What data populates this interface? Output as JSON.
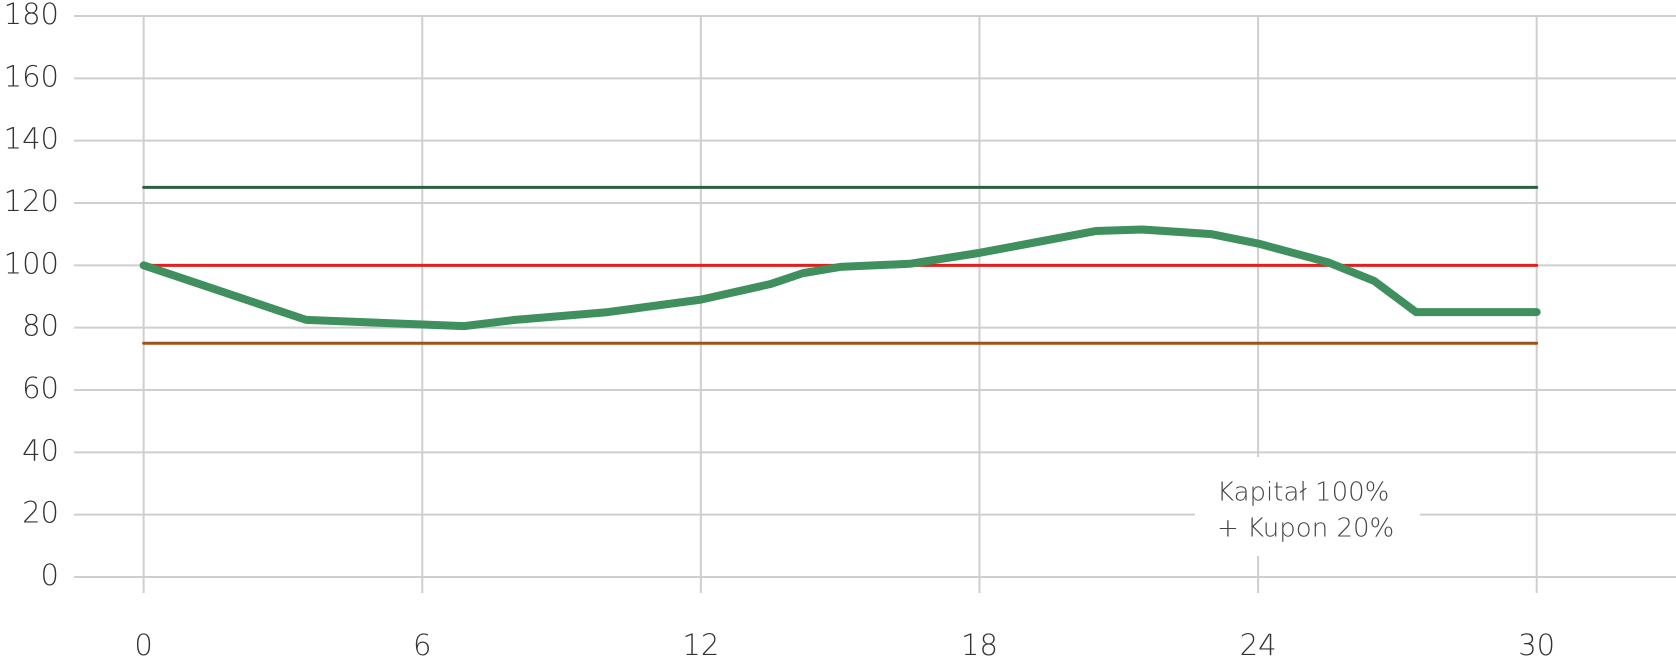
{
  "chart_data": {
    "type": "line",
    "annotation": [
      "Kapitał 100%",
      "+ Kupon 20%"
    ],
    "xlim": [
      -1.5,
      33
    ],
    "xticks": [
      0,
      6,
      12,
      18,
      24,
      30
    ],
    "ylim": [
      0,
      180
    ],
    "yticks": [
      0,
      20,
      40,
      60,
      80,
      100,
      120,
      140,
      160,
      180
    ],
    "grid": true,
    "series": [
      {
        "color": "#2f5f3f",
        "width": 3,
        "x": [
          0,
          30
        ],
        "values": [
          125,
          125
        ]
      },
      {
        "color": "#e0201e",
        "width": 3,
        "x": [
          0,
          30
        ],
        "values": [
          100,
          100
        ]
      },
      {
        "color": "#a0521a",
        "width": 3,
        "x": [
          0,
          30
        ],
        "values": [
          75,
          75
        ]
      },
      {
        "color": "#3f8f5f",
        "width": 8,
        "x": [
          0,
          3.5,
          6.9,
          8,
          10,
          12,
          13.5,
          14.2,
          15,
          16.5,
          18,
          20.5,
          21.5,
          23,
          24,
          25.5,
          26.5,
          27.4,
          30
        ],
        "values": [
          100,
          82.5,
          80.5,
          82.5,
          85,
          89,
          94,
          97.5,
          99.5,
          100.5,
          104,
          111,
          111.5,
          110,
          107,
          101,
          95,
          85,
          85
        ]
      }
    ]
  }
}
